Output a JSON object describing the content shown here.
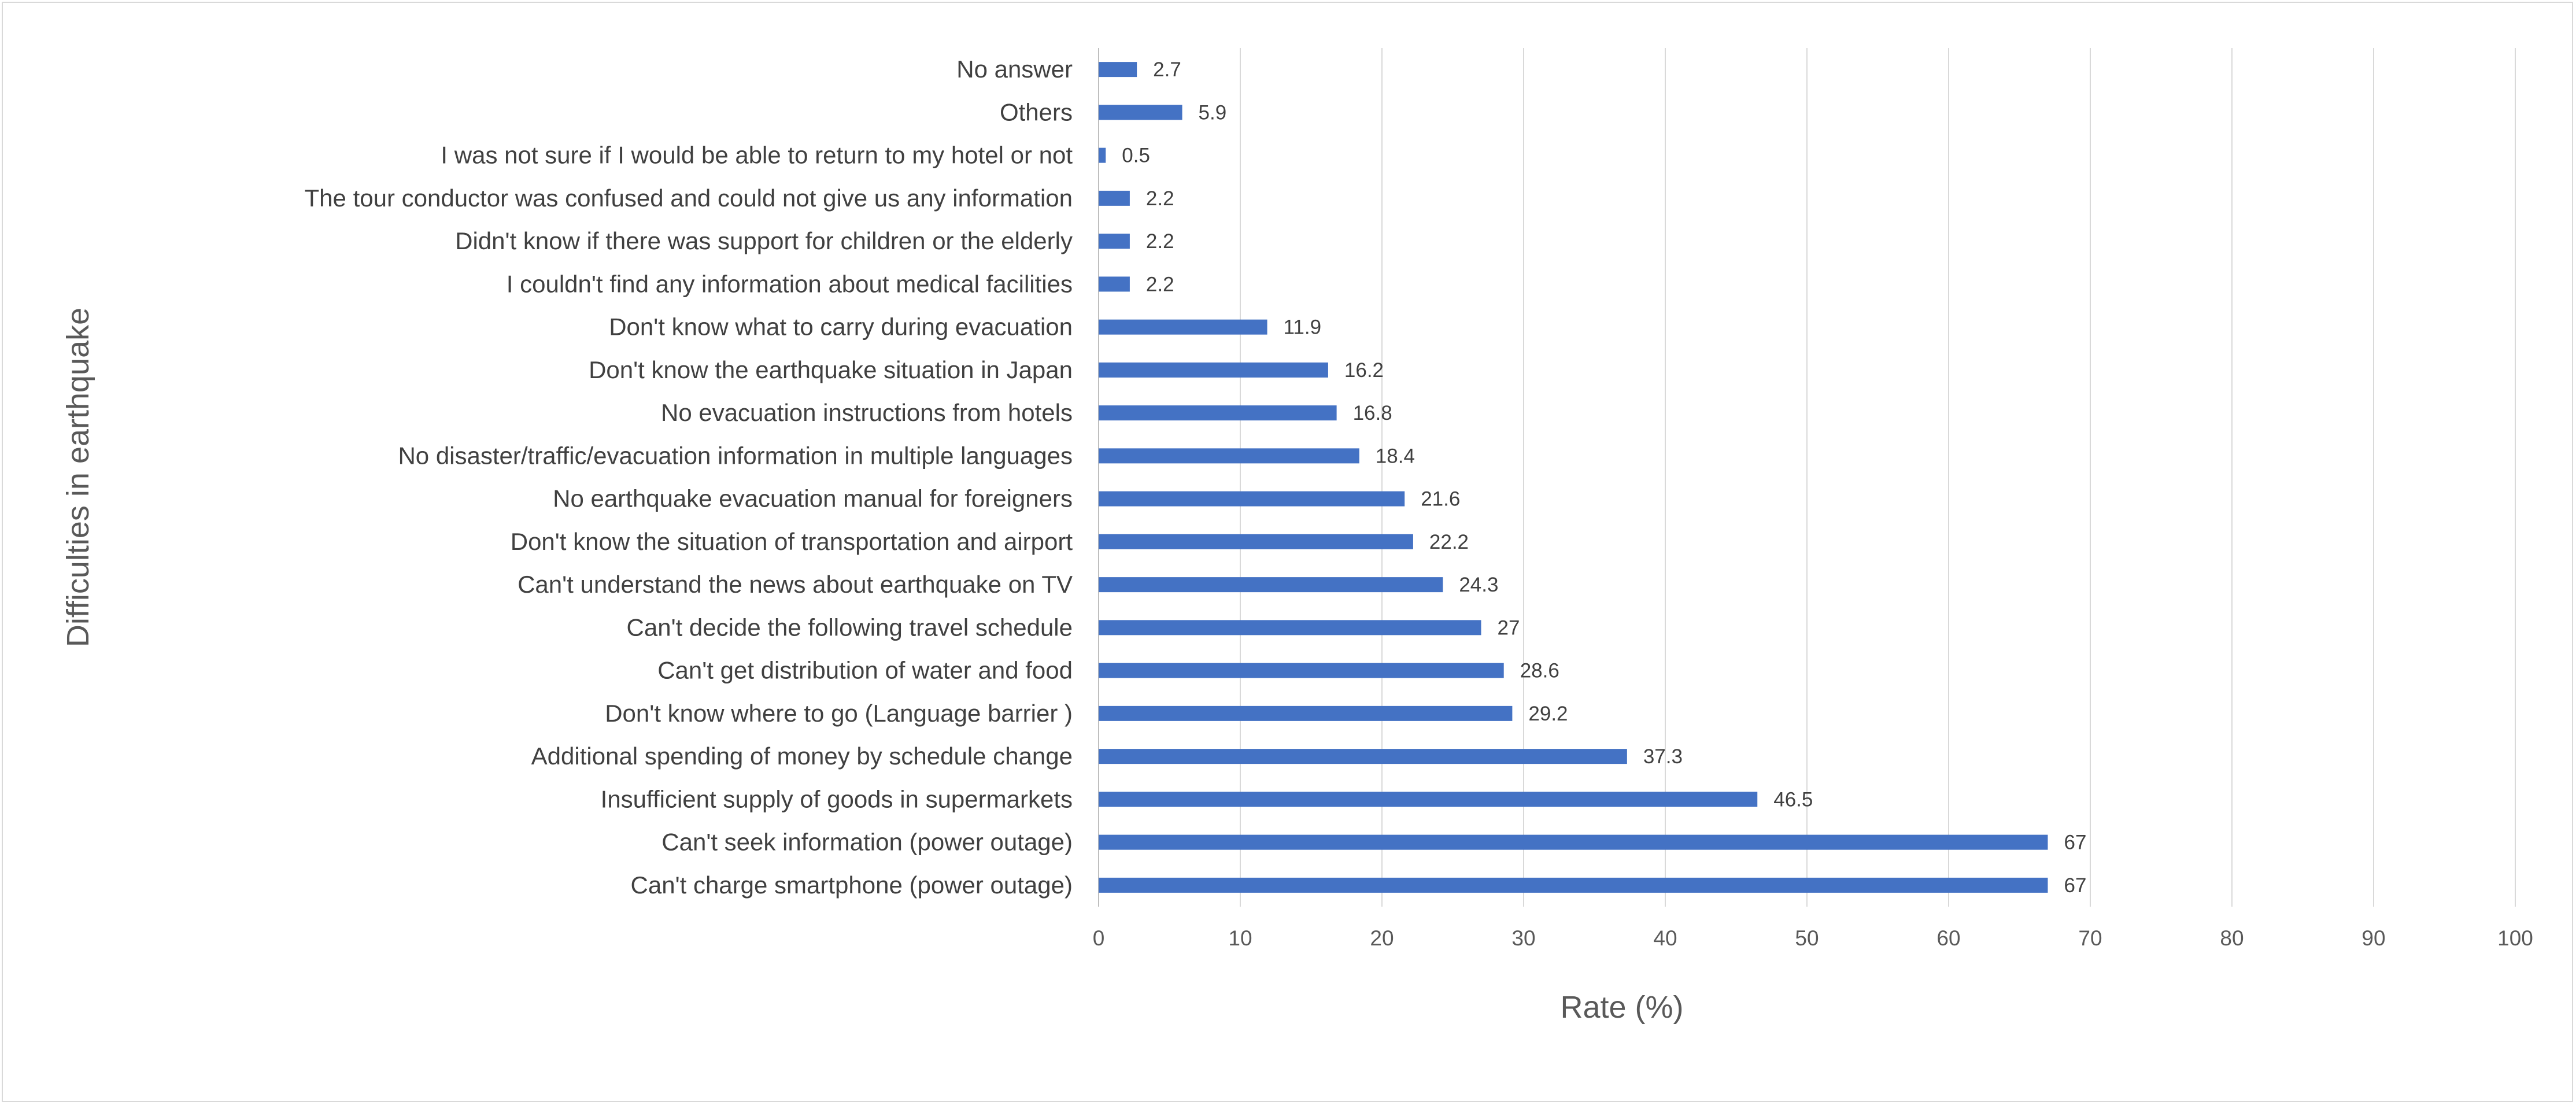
{
  "chart_data": {
    "type": "bar",
    "orientation": "horizontal",
    "ylabel": "Difficulties in earthquake",
    "xlabel": "Rate (%)",
    "xlim": [
      0,
      100
    ],
    "xticks": [
      0,
      10,
      20,
      30,
      40,
      50,
      60,
      70,
      80,
      90,
      100
    ],
    "grid": "vertical",
    "bar_color": "#4472c4",
    "categories": [
      "No answer",
      "Others",
      "I was not sure if I would be able to return to my hotel or not",
      "The tour conductor was confused and could not give us any information",
      "Didn't know if there was support for children or the elderly",
      "I couldn't find any information about medical facilities",
      "Don't know what to carry during evacuation",
      "Don't know the earthquake situation in Japan",
      "No evacuation instructions from hotels",
      "No disaster/traffic/evacuation information in multiple languages",
      "No earthquake evacuation manual for foreigners",
      "Don't know the situation of transportation and airport",
      "Can't understand the news about earthquake on TV",
      "Can't decide the following travel schedule",
      "Can't get distribution of water and food",
      "Don't know where to go (Language barrier )",
      "Additional spending of money by schedule change",
      "Insufficient supply of goods in supermarkets",
      "Can't seek information (power outage)",
      "Can't charge smartphone (power outage)"
    ],
    "values": [
      2.7,
      5.9,
      0.5,
      2.2,
      2.2,
      2.2,
      11.9,
      16.2,
      16.8,
      18.4,
      21.6,
      22.2,
      24.3,
      27,
      28.6,
      29.2,
      37.3,
      46.5,
      67,
      67
    ]
  }
}
